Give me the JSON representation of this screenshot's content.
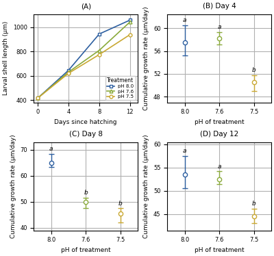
{
  "chart_data": [
    {
      "type": "line",
      "title": "(A)",
      "xlabel": "Days since hatching",
      "ylabel": "Larval shell length (μm)",
      "x": [
        0,
        4,
        8,
        12
      ],
      "series": [
        {
          "name": "pH 8.0",
          "color": "#2d5fa0",
          "marker": "square",
          "values": [
            415,
            645,
            945,
            1060
          ]
        },
        {
          "name": "pH 7.6",
          "color": "#8aaa3a",
          "marker": "triangle",
          "values": [
            415,
            630,
            810,
            1045
          ]
        },
        {
          "name": "pH 7.5",
          "color": "#c9a832",
          "marker": "circle",
          "values": [
            415,
            620,
            775,
            940
          ]
        }
      ],
      "xlim": [
        -0.5,
        13
      ],
      "xticks": [
        0,
        4,
        8,
        12
      ],
      "ylim": [
        380,
        1110
      ],
      "yticks": [
        400,
        600,
        800,
        1000
      ],
      "grid": true,
      "legend": "lower right",
      "legend_title": "Treatment"
    },
    {
      "type": "errorbar",
      "title": "(B) Day 4",
      "xlabel": "pH of treatment",
      "ylabel": "Cumulative growth rate (μm/day)",
      "categories": [
        "8.0",
        "7.6",
        "7.5"
      ],
      "values": [
        57.5,
        58.2,
        50.5
      ],
      "upper": [
        60.5,
        59.3,
        51.8
      ],
      "lower": [
        55.2,
        57.2,
        49.0
      ],
      "annotations": [
        "a",
        "a",
        "b"
      ],
      "colors": [
        "#2d5fa0",
        "#8aaa3a",
        "#c9a832"
      ],
      "ylim": [
        47.0,
        62.5
      ],
      "yticks": [
        48,
        52,
        56,
        60
      ],
      "grid": true
    },
    {
      "type": "errorbar",
      "title": "(C) Day 8",
      "xlabel": "pH of treatment",
      "ylabel": "Cumulative growth rate (μm/day)",
      "categories": [
        "8.0",
        "7.6",
        "7.5"
      ],
      "values": [
        65.0,
        50.0,
        45.5
      ],
      "upper": [
        68.5,
        51.5,
        47.5
      ],
      "lower": [
        63.5,
        47.5,
        42.0
      ],
      "annotations": [
        "a",
        "b",
        "b"
      ],
      "colors": [
        "#2d5fa0",
        "#8aaa3a",
        "#c9a832"
      ],
      "ylim": [
        39.0,
        73.0
      ],
      "yticks": [
        40,
        50,
        60,
        70
      ],
      "grid": true
    },
    {
      "type": "errorbar",
      "title": "(D) Day 12",
      "xlabel": "pH of treatment",
      "ylabel": "Cumulative growth rate (μm/day)",
      "categories": [
        "8.0",
        "7.6",
        "7.5"
      ],
      "values": [
        53.5,
        52.5,
        44.5
      ],
      "upper": [
        57.5,
        54.2,
        46.2
      ],
      "lower": [
        50.5,
        51.5,
        43.0
      ],
      "annotations": [
        "a",
        "a",
        "b"
      ],
      "colors": [
        "#2d5fa0",
        "#8aaa3a",
        "#c9a832"
      ],
      "ylim": [
        41.5,
        60.5
      ],
      "yticks": [
        45,
        50,
        55,
        60
      ],
      "grid": true
    }
  ]
}
